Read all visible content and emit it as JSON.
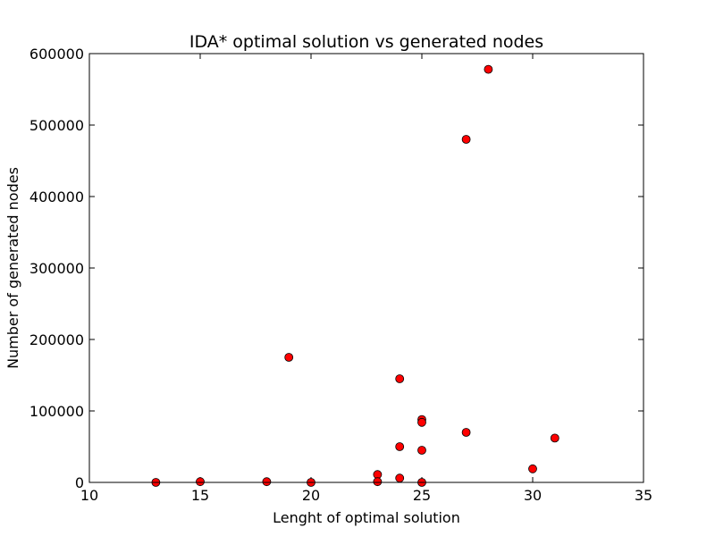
{
  "chart_data": {
    "type": "scatter",
    "title": "IDA* optimal solution vs generated nodes",
    "xlabel": "Lenght of optimal solution",
    "ylabel": "Number of generated nodes",
    "xlim": [
      10,
      35
    ],
    "ylim": [
      0,
      600000
    ],
    "xticks": [
      10,
      15,
      20,
      25,
      30,
      35
    ],
    "yticks": [
      0,
      100000,
      200000,
      300000,
      400000,
      500000,
      600000
    ],
    "grid": false,
    "marker_color": "#ff0000",
    "marker_edge_color": "#000000",
    "points": [
      {
        "x": 13,
        "y": 0
      },
      {
        "x": 15,
        "y": 1000
      },
      {
        "x": 18,
        "y": 1000
      },
      {
        "x": 19,
        "y": 175000
      },
      {
        "x": 20,
        "y": 0
      },
      {
        "x": 23,
        "y": 11000
      },
      {
        "x": 23,
        "y": 1000
      },
      {
        "x": 24,
        "y": 145000
      },
      {
        "x": 24,
        "y": 50000
      },
      {
        "x": 24,
        "y": 6000
      },
      {
        "x": 25,
        "y": 88000
      },
      {
        "x": 25,
        "y": 84000
      },
      {
        "x": 25,
        "y": 45000
      },
      {
        "x": 25,
        "y": 0
      },
      {
        "x": 27,
        "y": 480000
      },
      {
        "x": 27,
        "y": 70000
      },
      {
        "x": 28,
        "y": 578000
      },
      {
        "x": 30,
        "y": 19000
      },
      {
        "x": 31,
        "y": 62000
      }
    ]
  }
}
